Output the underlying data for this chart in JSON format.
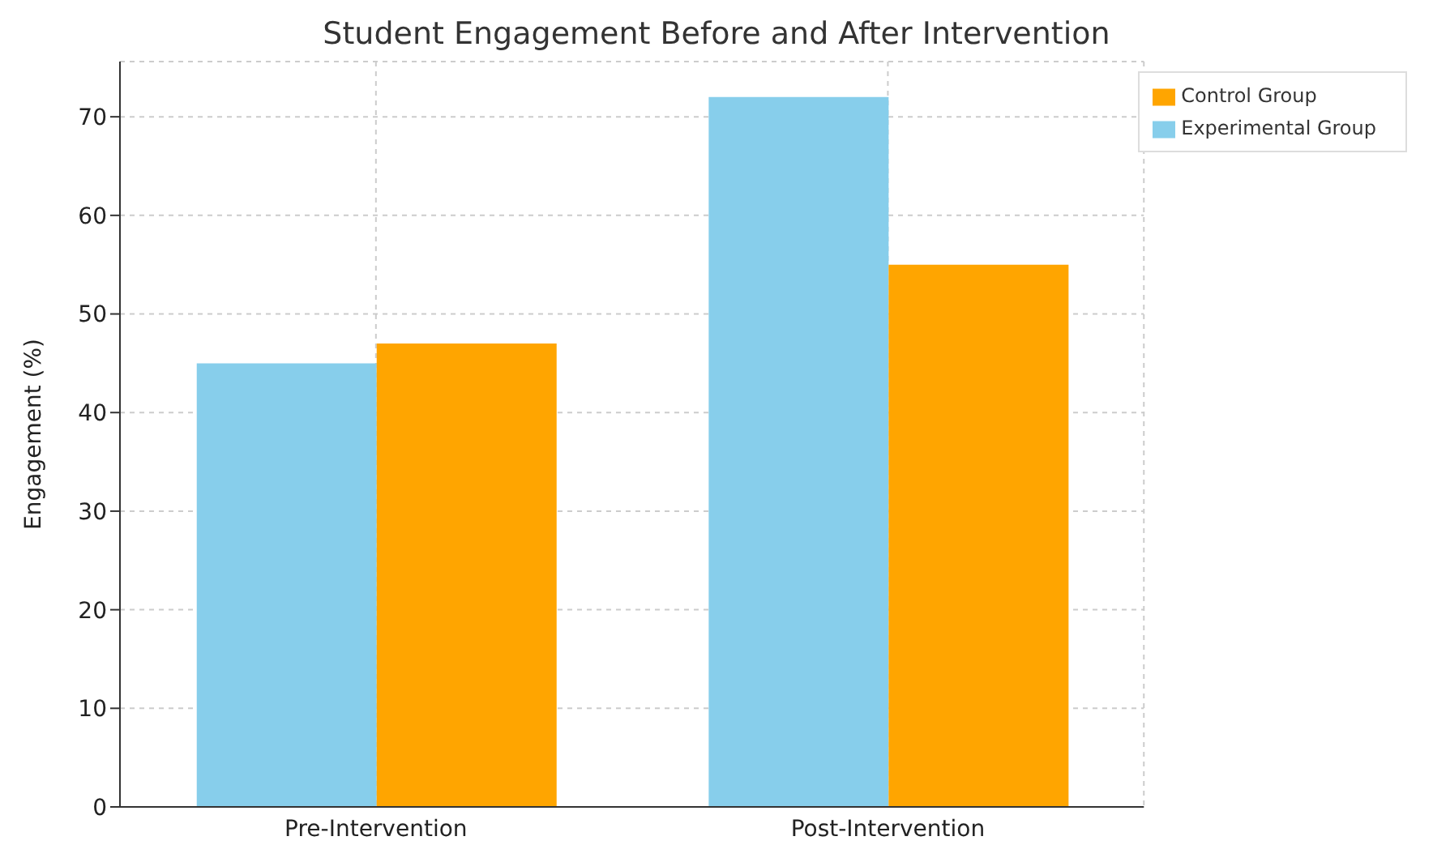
{
  "chart_data": {
    "type": "bar",
    "title": "Student Engagement Before and After Intervention",
    "ylabel": "Engagement (%)",
    "categories": [
      "Pre-Intervention",
      "Post-Intervention"
    ],
    "series": [
      {
        "name": "Experimental Group",
        "color": "#87ceeb",
        "values": [
          45,
          72
        ]
      },
      {
        "name": "Control Group",
        "color": "#ffa500",
        "values": [
          47,
          55
        ]
      }
    ],
    "ylim": [
      0,
      75.6
    ],
    "yticks": [
      0,
      10,
      20,
      30,
      40,
      50,
      60,
      70
    ],
    "grid": true,
    "legend": "top right"
  }
}
